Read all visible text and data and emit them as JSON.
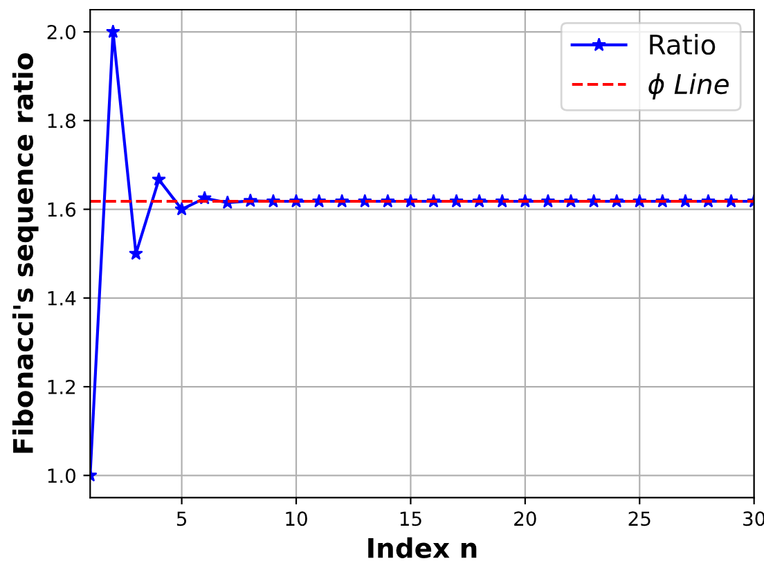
{
  "chart_data": {
    "type": "line",
    "xlabel": "Index n",
    "ylabel": "Fibonacci's sequence ratio",
    "x": [
      1,
      2,
      3,
      4,
      5,
      6,
      7,
      8,
      9,
      10,
      11,
      12,
      13,
      14,
      15,
      16,
      17,
      18,
      19,
      20,
      21,
      22,
      23,
      24,
      25,
      26,
      27,
      28,
      29,
      30
    ],
    "series": [
      {
        "name": "Ratio",
        "color": "#0000ff",
        "values": [
          1.0,
          2.0,
          1.5,
          1.667,
          1.6,
          1.625,
          1.615,
          1.619,
          1.618,
          1.618,
          1.618,
          1.618,
          1.618,
          1.618,
          1.618,
          1.618,
          1.618,
          1.618,
          1.618,
          1.618,
          1.618,
          1.618,
          1.618,
          1.618,
          1.618,
          1.618,
          1.618,
          1.618,
          1.618,
          1.618
        ]
      }
    ],
    "ref_lines": [
      {
        "axis": "y",
        "value": 1.618,
        "label": "ϕ Line",
        "color": "#ff0000",
        "line_style": "dashed"
      }
    ],
    "marker": "star",
    "line_style": "solid",
    "xlim": [
      1,
      30
    ],
    "xticks": [
      5,
      10,
      15,
      20,
      25,
      30
    ],
    "ylim": [
      0.95,
      2.05
    ],
    "yticks": [
      {
        "value": 1,
        "label": "1.0"
      },
      1.2,
      1.4,
      1.6,
      1.8,
      {
        "value": 2,
        "label": "2.0"
      }
    ],
    "grid": true,
    "legend": "top right"
  }
}
